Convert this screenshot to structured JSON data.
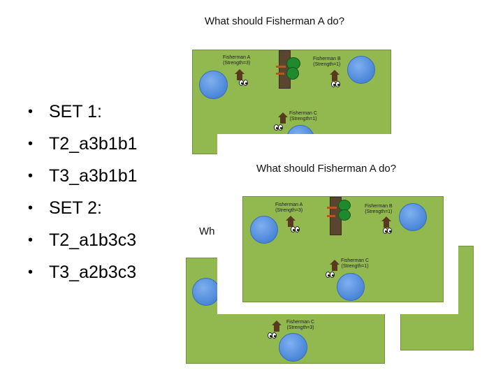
{
  "bullets": [
    "SET 1:",
    "T2_a3b1b1",
    "T3_a3b1b1",
    "SET 2:",
    "T2_a1b3c3",
    "T3_a2b3c3"
  ],
  "bullet_glyph": "•",
  "slide_top": {
    "title": "What should Fisherman A do?",
    "fisherman_a": {
      "name": "Fisherman A",
      "strength": "(Strength=3)"
    },
    "fisherman_b": {
      "name": "Fisherman B",
      "strength": "(Strength=1)"
    },
    "fisherman_c": {
      "name": "Fisherman C",
      "strength": "(Strength=1)"
    }
  },
  "slide_back": {
    "title_partial": "Wh",
    "fisherman_c": {
      "name": "Fisherman C",
      "strength": "(Strength=3)"
    }
  },
  "slide_front": {
    "title": "What should Fisherman A do?",
    "fisherman_a": {
      "name": "Fisherman A",
      "strength": "(Strength=3)"
    },
    "fisherman_b": {
      "name": "Fisherman B",
      "strength": "(Strength=1)"
    },
    "fisherman_c": {
      "name": "Fisherman C",
      "strength": "(Strength=1)"
    }
  },
  "colors": {
    "grass": "#92b850",
    "pond": "#4a86d8",
    "leaves": "#1f8a2b",
    "house": "#5a3a1e"
  }
}
